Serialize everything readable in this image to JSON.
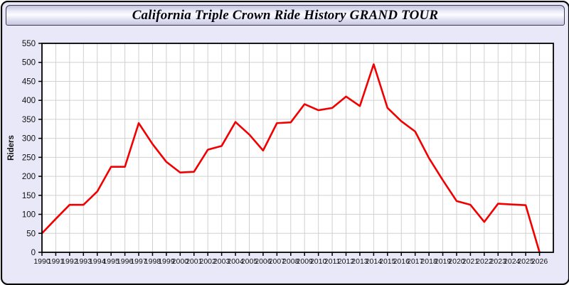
{
  "window": {
    "title": "California Triple Crown Ride History GRAND TOUR"
  },
  "colors": {
    "line": "#f20000",
    "panel_background": "#e8e8f8",
    "plot_background": "#ffffff",
    "gridline": "#d0d0d0",
    "axis": "#000000",
    "label_text": "#111111"
  },
  "chart_data": {
    "type": "line",
    "title": "California Triple Crown Ride History GRAND TOUR",
    "ylabel": "Riders",
    "xlabel": "",
    "grid": true,
    "legend": "none",
    "ylim": [
      0,
      550
    ],
    "ytick_step": 50,
    "x": [
      1990,
      1991,
      1992,
      1993,
      1994,
      1995,
      1996,
      1997,
      1998,
      1999,
      2000,
      2001,
      2002,
      2003,
      2004,
      2005,
      2006,
      2007,
      2008,
      2009,
      2010,
      2011,
      2012,
      2013,
      2014,
      2015,
      2016,
      2017,
      2018,
      2019,
      2020,
      2021,
      2022,
      2023,
      2024,
      2025,
      2026
    ],
    "series": [
      {
        "name": "Riders",
        "values": [
          50,
          88,
          125,
          125,
          160,
          225,
          225,
          340,
          285,
          238,
          210,
          212,
          270,
          280,
          343,
          310,
          268,
          340,
          342,
          390,
          374,
          380,
          410,
          385,
          495,
          380,
          345,
          318,
          248,
          190,
          135,
          125,
          80,
          128,
          126,
          124,
          0
        ]
      }
    ]
  }
}
